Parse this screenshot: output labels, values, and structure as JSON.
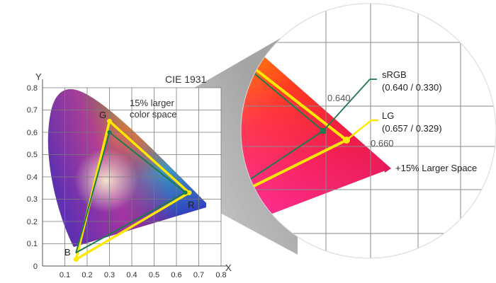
{
  "title": "CIE 1931",
  "axes": {
    "x_label": "X",
    "y_label": "Y",
    "x_ticks": [
      "0.1",
      "0.2",
      "0.3",
      "0.4",
      "0.5",
      "0.6",
      "0.7",
      "0.8"
    ],
    "y_ticks": [
      "0",
      "0.1",
      "0.2",
      "0.3",
      "0.4",
      "0.5",
      "0.6",
      "0.7",
      "0.8"
    ]
  },
  "annotation": {
    "line1": "15% larger",
    "line2": "color space"
  },
  "vertices": {
    "g": "G",
    "b": "B",
    "r": "R"
  },
  "gamuts": {
    "srgb": {
      "red": [
        0.64,
        0.33
      ],
      "green": [
        0.3,
        0.6
      ],
      "blue": [
        0.15,
        0.06
      ]
    },
    "lg": {
      "red": [
        0.657,
        0.329
      ],
      "green": [
        0.3,
        0.65
      ],
      "blue": [
        0.15,
        0.03
      ]
    }
  },
  "zoom": {
    "srgb_label": "sRGB",
    "srgb_value": "(0.640 / 0.330)",
    "lg_label": "LG",
    "lg_value": "(0.657 / 0.329)",
    "tick_640": "0.640",
    "tick_660": "0.660",
    "larger_space": "+15% Larger Space"
  },
  "colors": {
    "srgb": "#1e7a4e",
    "lg": "#ffe800",
    "grid": "#7a7a7a",
    "text": "#333333"
  }
}
